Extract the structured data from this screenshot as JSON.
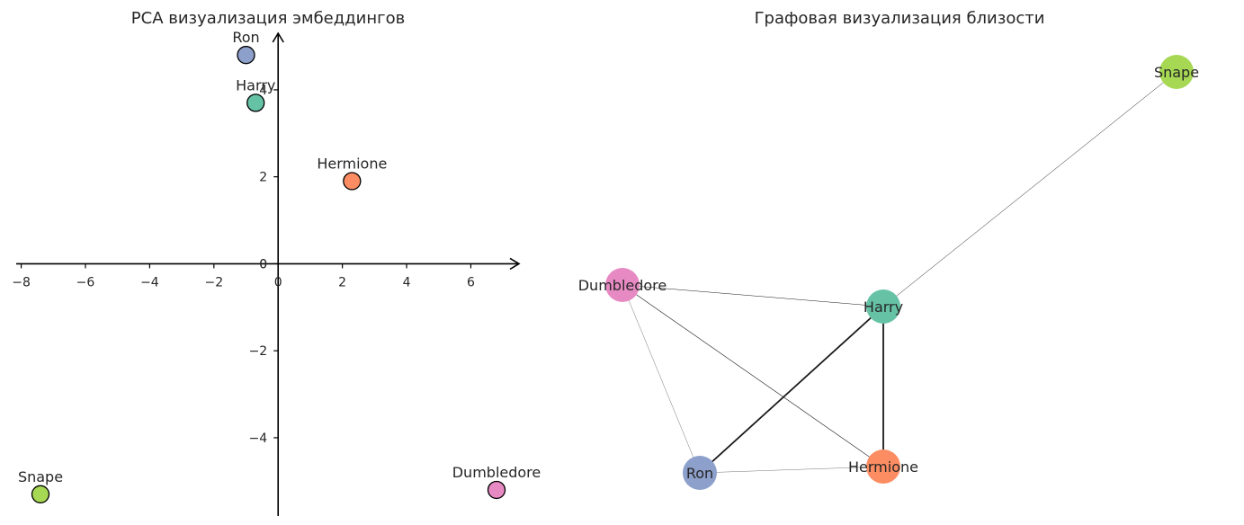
{
  "chart_data": [
    {
      "type": "scatter",
      "title": "PCA визуализация эмбеддингов",
      "xlabel": "",
      "ylabel": "",
      "xlim": [
        -8.1,
        7.5
      ],
      "ylim": [
        -5.8,
        5.3
      ],
      "xticks": [
        -8,
        -6,
        -4,
        -2,
        0,
        2,
        4,
        6
      ],
      "yticks": [
        -4,
        -2,
        0,
        2,
        4
      ],
      "xtick_labels": [
        "−8",
        "−6",
        "−4",
        "−2",
        "0",
        "2",
        "4",
        "6"
      ],
      "ytick_labels": [
        "−4",
        "−2",
        "0",
        "2",
        "4"
      ],
      "grid": false,
      "points": [
        {
          "label": "Ron",
          "x": -1.0,
          "y": 4.8,
          "color": "#8da0cb"
        },
        {
          "label": "Harry",
          "x": -0.7,
          "y": 3.7,
          "color": "#66c2a5"
        },
        {
          "label": "Hermione",
          "x": 2.3,
          "y": 1.9,
          "color": "#fc8d62"
        },
        {
          "label": "Snape",
          "x": -7.4,
          "y": -5.3,
          "color": "#a6d854"
        },
        {
          "label": "Dumbledore",
          "x": 6.8,
          "y": -5.2,
          "color": "#e78ac3"
        }
      ]
    },
    {
      "type": "graph",
      "title": "Графовая визуализация близости",
      "nodes": [
        {
          "id": "Snape",
          "label": "Snape",
          "color": "#a6d854"
        },
        {
          "id": "Dumbledore",
          "label": "Dumbledore",
          "color": "#e78ac3"
        },
        {
          "id": "Harry",
          "label": "Harry",
          "color": "#66c2a5"
        },
        {
          "id": "Ron",
          "label": "Ron",
          "color": "#8da0cb"
        },
        {
          "id": "Hermione",
          "label": "Hermione",
          "color": "#fc8d62"
        }
      ],
      "edges": [
        {
          "source": "Harry",
          "target": "Snape",
          "weight": 0.5
        },
        {
          "source": "Dumbledore",
          "target": "Harry",
          "weight": 0.5
        },
        {
          "source": "Dumbledore",
          "target": "Ron",
          "weight": 0.3
        },
        {
          "source": "Dumbledore",
          "target": "Hermione",
          "weight": 0.6
        },
        {
          "source": "Harry",
          "target": "Ron",
          "weight": 1.8
        },
        {
          "source": "Harry",
          "target": "Hermione",
          "weight": 1.8
        },
        {
          "source": "Ron",
          "target": "Hermione",
          "weight": 0.3
        }
      ]
    }
  ]
}
